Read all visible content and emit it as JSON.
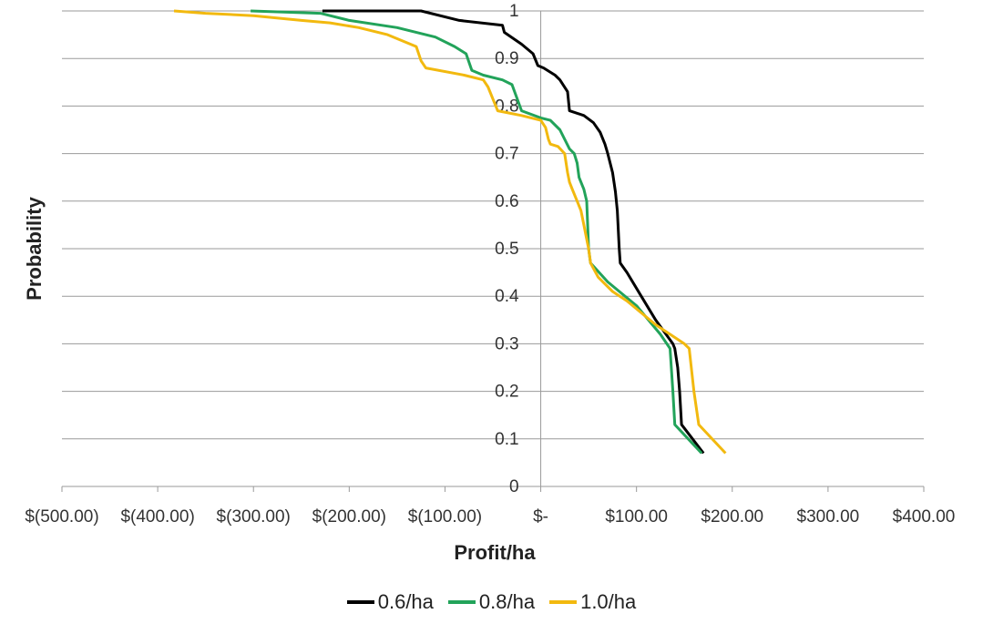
{
  "chart_data": {
    "type": "line",
    "title": "",
    "xlabel": "Profit/ha",
    "ylabel": "Probability",
    "xlim": [
      -500,
      400
    ],
    "ylim": [
      0,
      1
    ],
    "grid": true,
    "legend_position": "bottom",
    "x_tick_labels": [
      "$(500.00)",
      "$(400.00)",
      "$(300.00)",
      "$(200.00)",
      "$(100.00)",
      "$-",
      "$100.00",
      "$200.00",
      "$300.00",
      "$400.00"
    ],
    "x_tick_values": [
      -500,
      -400,
      -300,
      -200,
      -100,
      0,
      100,
      200,
      300,
      400
    ],
    "y_tick_labels": [
      "0",
      "0.1",
      "0.2",
      "0.3",
      "0.4",
      "0.5",
      "0.6",
      "0.7",
      "0.8",
      "0.9",
      "1"
    ],
    "y_tick_values": [
      0,
      0.1,
      0.2,
      0.3,
      0.4,
      0.5,
      0.6,
      0.7,
      0.8,
      0.9,
      1
    ],
    "series": [
      {
        "name": "0.6/ha",
        "color": "#000000",
        "points": [
          [
            -228,
            1.0
          ],
          [
            -125,
            1.0
          ],
          [
            -85,
            0.98
          ],
          [
            -40,
            0.97
          ],
          [
            -38,
            0.955
          ],
          [
            -20,
            0.93
          ],
          [
            -8,
            0.91
          ],
          [
            -3,
            0.885
          ],
          [
            3,
            0.88
          ],
          [
            15,
            0.865
          ],
          [
            20,
            0.855
          ],
          [
            28,
            0.83
          ],
          [
            30,
            0.79
          ],
          [
            45,
            0.78
          ],
          [
            55,
            0.765
          ],
          [
            62,
            0.745
          ],
          [
            67,
            0.72
          ],
          [
            70,
            0.7
          ],
          [
            75,
            0.66
          ],
          [
            78,
            0.62
          ],
          [
            80,
            0.58
          ],
          [
            82,
            0.5
          ],
          [
            83,
            0.47
          ],
          [
            90,
            0.45
          ],
          [
            105,
            0.4
          ],
          [
            120,
            0.35
          ],
          [
            138,
            0.3
          ],
          [
            140,
            0.29
          ],
          [
            143,
            0.25
          ],
          [
            145,
            0.2
          ],
          [
            147,
            0.13
          ],
          [
            170,
            0.07
          ]
        ]
      },
      {
        "name": "0.8/ha",
        "color": "#22a35a",
        "points": [
          [
            -303,
            1.0
          ],
          [
            -230,
            0.995
          ],
          [
            -200,
            0.98
          ],
          [
            -150,
            0.965
          ],
          [
            -110,
            0.945
          ],
          [
            -90,
            0.925
          ],
          [
            -78,
            0.91
          ],
          [
            -72,
            0.875
          ],
          [
            -60,
            0.865
          ],
          [
            -40,
            0.855
          ],
          [
            -30,
            0.845
          ],
          [
            -20,
            0.79
          ],
          [
            0,
            0.775
          ],
          [
            10,
            0.77
          ],
          [
            20,
            0.75
          ],
          [
            30,
            0.71
          ],
          [
            35,
            0.7
          ],
          [
            38,
            0.68
          ],
          [
            40,
            0.65
          ],
          [
            42,
            0.64
          ],
          [
            45,
            0.625
          ],
          [
            48,
            0.6
          ],
          [
            50,
            0.5
          ],
          [
            52,
            0.47
          ],
          [
            70,
            0.43
          ],
          [
            100,
            0.38
          ],
          [
            125,
            0.32
          ],
          [
            135,
            0.29
          ],
          [
            138,
            0.2
          ],
          [
            140,
            0.13
          ],
          [
            168,
            0.07
          ]
        ]
      },
      {
        "name": "1.0/ha",
        "color": "#f2b90f",
        "points": [
          [
            -383,
            1.0
          ],
          [
            -350,
            0.995
          ],
          [
            -300,
            0.99
          ],
          [
            -250,
            0.98
          ],
          [
            -220,
            0.975
          ],
          [
            -190,
            0.965
          ],
          [
            -160,
            0.95
          ],
          [
            -130,
            0.925
          ],
          [
            -125,
            0.895
          ],
          [
            -120,
            0.88
          ],
          [
            -80,
            0.865
          ],
          [
            -60,
            0.855
          ],
          [
            -55,
            0.84
          ],
          [
            -50,
            0.815
          ],
          [
            -45,
            0.79
          ],
          [
            -20,
            0.78
          ],
          [
            0,
            0.77
          ],
          [
            5,
            0.755
          ],
          [
            8,
            0.73
          ],
          [
            10,
            0.72
          ],
          [
            18,
            0.715
          ],
          [
            25,
            0.7
          ],
          [
            28,
            0.66
          ],
          [
            30,
            0.64
          ],
          [
            33,
            0.625
          ],
          [
            38,
            0.6
          ],
          [
            42,
            0.58
          ],
          [
            45,
            0.55
          ],
          [
            48,
            0.52
          ],
          [
            50,
            0.5
          ],
          [
            52,
            0.47
          ],
          [
            60,
            0.44
          ],
          [
            75,
            0.41
          ],
          [
            90,
            0.39
          ],
          [
            120,
            0.34
          ],
          [
            150,
            0.3
          ],
          [
            155,
            0.29
          ],
          [
            160,
            0.2
          ],
          [
            165,
            0.13
          ],
          [
            193,
            0.07
          ]
        ]
      }
    ]
  }
}
